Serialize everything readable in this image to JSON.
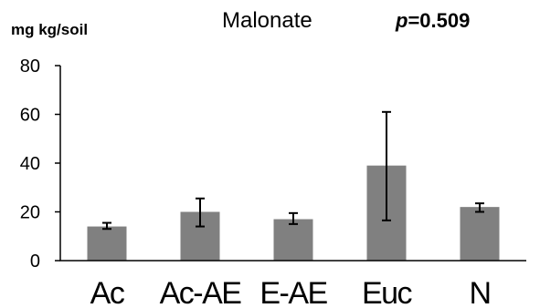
{
  "chart_data": {
    "type": "bar",
    "title": "Malonate",
    "p_value_label": "p",
    "p_value_text": "=0.509",
    "ylabel": "mg kg/soil",
    "ylim": [
      0,
      80
    ],
    "yticks": [
      0,
      20,
      40,
      60,
      80
    ],
    "categories": [
      "Ac",
      "Ac-AE",
      "E-AE",
      "Euc",
      "N"
    ],
    "values": [
      14,
      20,
      17,
      39,
      22
    ],
    "error_low": [
      13,
      14,
      15,
      16.5,
      20
    ],
    "error_high": [
      15.5,
      25.5,
      19.5,
      61,
      23.5
    ],
    "bar_color": "#808080",
    "grid": false,
    "legend": "none"
  }
}
